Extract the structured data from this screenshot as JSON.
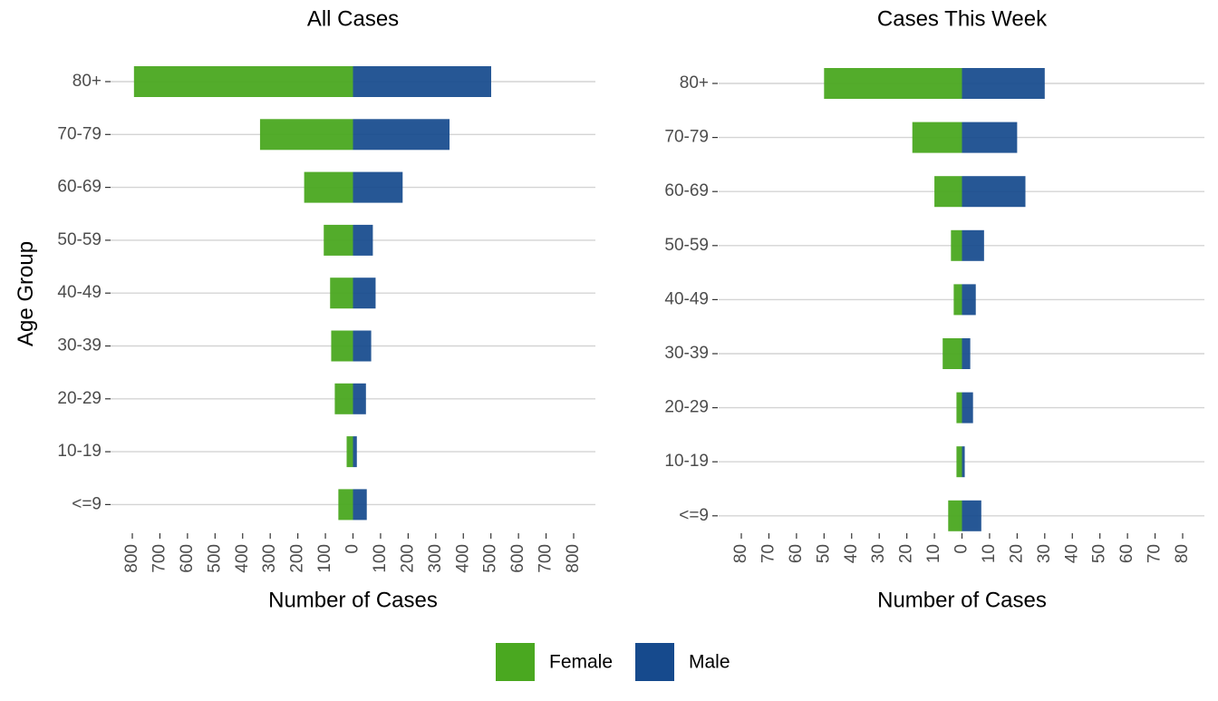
{
  "legend": {
    "position": "bottom",
    "items": [
      {
        "label": "Female",
        "color": "#4aa820"
      },
      {
        "label": "Male",
        "color": "#164a8d"
      }
    ]
  },
  "shared_ylabel": "Age Group",
  "chart_data": [
    {
      "type": "bar",
      "orientation": "horizontal-diverging",
      "title": "All Cases",
      "xlabel": "Number of Cases",
      "ylabel": "Age Group",
      "categories": [
        "80+",
        "70-79",
        "60-69",
        "50-59",
        "40-49",
        "30-39",
        "20-29",
        "10-19",
        "<=9"
      ],
      "series": [
        {
          "name": "Female",
          "color": "#4aa820",
          "values": [
            794,
            337,
            177,
            106,
            83,
            79,
            66,
            23,
            53
          ]
        },
        {
          "name": "Male",
          "color": "#164a8d",
          "values": [
            501,
            350,
            180,
            72,
            82,
            66,
            47,
            14,
            50
          ]
        }
      ],
      "xlim": [
        -800,
        800
      ],
      "xticks": [
        -800,
        -700,
        -600,
        -500,
        -400,
        -300,
        -200,
        -100,
        0,
        100,
        200,
        300,
        400,
        500,
        600,
        700,
        800
      ],
      "xtick_labels": [
        "800",
        "700",
        "600",
        "500",
        "400",
        "300",
        "200",
        "100",
        "0",
        "100",
        "200",
        "300",
        "400",
        "500",
        "600",
        "700",
        "800"
      ],
      "grid": "horizontal"
    },
    {
      "type": "bar",
      "orientation": "horizontal-diverging",
      "title": "Cases This Week",
      "xlabel": "Number of Cases",
      "ylabel": "",
      "categories": [
        "80+",
        "70-79",
        "60-69",
        "50-59",
        "40-49",
        "30-39",
        "20-29",
        "10-19",
        "<=9"
      ],
      "series": [
        {
          "name": "Female",
          "color": "#4aa820",
          "values": [
            50,
            18,
            10,
            4,
            3,
            7,
            2,
            2,
            5
          ]
        },
        {
          "name": "Male",
          "color": "#164a8d",
          "values": [
            30,
            20,
            23,
            8,
            5,
            3,
            4,
            1,
            7
          ]
        }
      ],
      "xlim": [
        -80,
        80
      ],
      "xticks": [
        -80,
        -70,
        -60,
        -50,
        -40,
        -30,
        -20,
        -10,
        0,
        10,
        20,
        30,
        40,
        50,
        60,
        70,
        80
      ],
      "xtick_labels": [
        "80",
        "70",
        "60",
        "50",
        "40",
        "30",
        "20",
        "10",
        "0",
        "10",
        "20",
        "30",
        "40",
        "50",
        "60",
        "70",
        "80"
      ],
      "grid": "horizontal"
    }
  ]
}
